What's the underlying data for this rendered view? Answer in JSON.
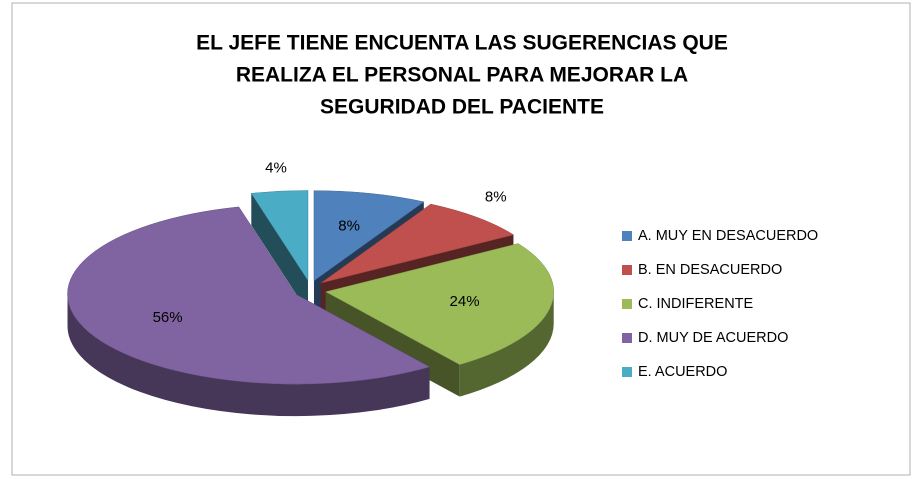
{
  "chart_data": {
    "type": "pie",
    "title": [
      "EL JEFE TIENE ENCUENTA LAS SUGERENCIAS QUE",
      "REALIZA EL PERSONAL  PARA MEJORAR LA",
      "SEGURIDAD DEL PACIENTE"
    ],
    "categories": [
      "A. MUY EN DESACUERDO",
      "B. EN DESACUERDO",
      "C. INDIFERENTE",
      "D. MUY DE ACUERDO",
      "E. ACUERDO"
    ],
    "values": [
      8,
      8,
      24,
      56,
      4
    ],
    "value_labels": [
      "8%",
      "8%",
      "24%",
      "56%",
      "4%"
    ],
    "colors": [
      "#4f81bd",
      "#c0504d",
      "#9bbb59",
      "#8064a2",
      "#4bacc6"
    ],
    "legend": "right"
  }
}
